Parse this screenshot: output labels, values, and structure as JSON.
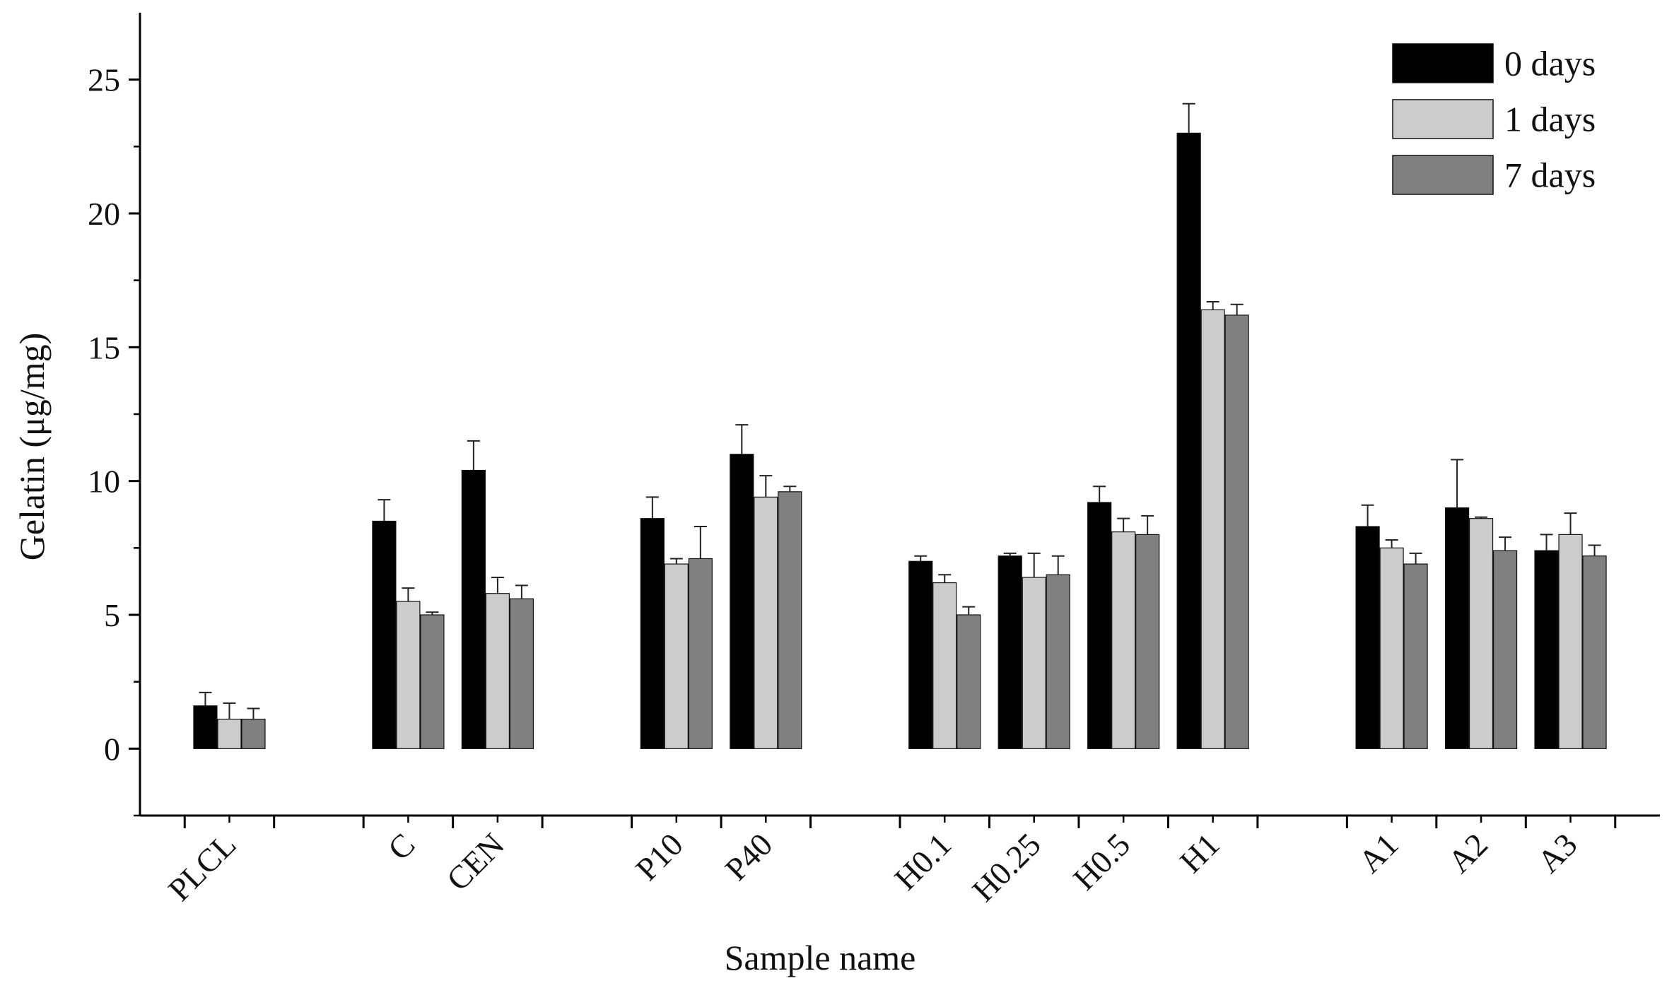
{
  "chart_data": {
    "type": "bar",
    "title": "",
    "xlabel": "Sample name",
    "ylabel": "Gelatin  (μg/mg)",
    "ylim": [
      -2.5,
      27.5
    ],
    "yticks": [
      0,
      5,
      10,
      15,
      20,
      25
    ],
    "ytick_labels": [
      "0",
      "5",
      "10",
      "15",
      "20",
      "25"
    ],
    "grid": false,
    "legend_position": "top-right",
    "groups": [
      [
        "PLCL"
      ],
      [
        "C",
        "CEN"
      ],
      [
        "P10",
        "P40"
      ],
      [
        "H0.1",
        "H0.25",
        "H0.5",
        "H1"
      ],
      [
        "A1",
        "A2",
        "A3"
      ]
    ],
    "categories": [
      "PLCL",
      "C",
      "CEN",
      "P10",
      "P40",
      "H0.1",
      "H0.25",
      "H0.5",
      "H1",
      "A1",
      "A2",
      "A3"
    ],
    "series": [
      {
        "name": "0 days",
        "color": "#000000",
        "values": [
          1.6,
          8.5,
          10.4,
          8.6,
          11.0,
          7.0,
          7.2,
          9.2,
          23.0,
          8.3,
          9.0,
          7.4
        ],
        "errors": [
          0.5,
          0.8,
          1.1,
          0.8,
          1.1,
          0.2,
          0.1,
          0.6,
          1.1,
          0.8,
          1.8,
          0.6
        ]
      },
      {
        "name": "1 days",
        "color": "#cccccc",
        "values": [
          1.1,
          5.5,
          5.8,
          6.9,
          9.4,
          6.2,
          6.4,
          8.1,
          16.4,
          7.5,
          8.6,
          8.0
        ],
        "errors": [
          0.6,
          0.5,
          0.6,
          0.2,
          0.8,
          0.3,
          0.9,
          0.5,
          0.3,
          0.3,
          0.05,
          0.8
        ]
      },
      {
        "name": "7 days",
        "color": "#808080",
        "values": [
          1.1,
          5.0,
          5.6,
          7.1,
          9.6,
          5.0,
          6.5,
          8.0,
          16.2,
          6.9,
          7.4,
          7.2
        ],
        "errors": [
          0.4,
          0.1,
          0.5,
          1.2,
          0.2,
          0.3,
          0.7,
          0.7,
          0.4,
          0.4,
          0.5,
          0.4
        ]
      }
    ]
  }
}
